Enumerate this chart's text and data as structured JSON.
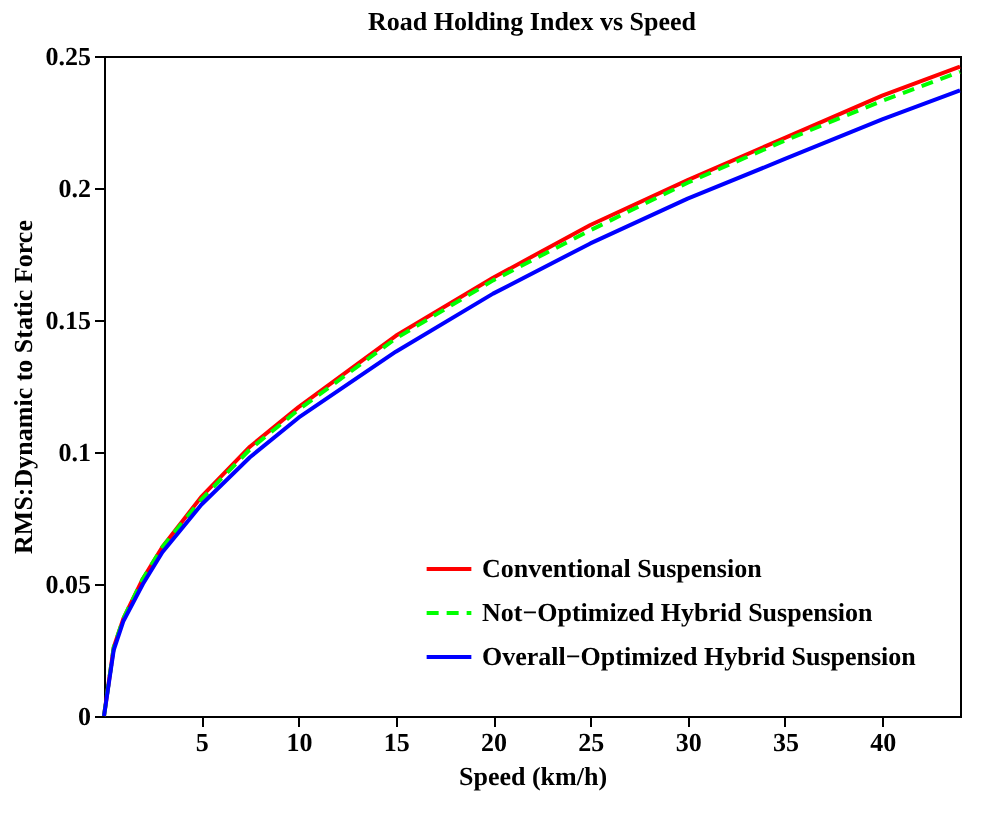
{
  "chart_data": {
    "type": "line",
    "title": "Road Holding Index  vs Speed",
    "xlabel": "Speed (km/h)",
    "ylabel": "RMS:Dynamic to Static Force",
    "x": [
      0,
      0.5,
      1,
      2,
      3,
      5,
      7.5,
      10,
      15,
      20,
      25,
      30,
      35,
      40,
      44
    ],
    "series": [
      {
        "name": "Conventional Suspension",
        "color": "#ff0000",
        "line_style": "solid",
        "values": [
          0,
          0.026,
          0.037,
          0.052,
          0.064,
          0.083,
          0.102,
          0.117,
          0.144,
          0.166,
          0.186,
          0.203,
          0.219,
          0.235,
          0.246
        ]
      },
      {
        "name": "Not−Optimized Hybrid Suspension",
        "color": "#00ff00",
        "line_style": "dashed",
        "values": [
          0,
          0.026,
          0.037,
          0.052,
          0.064,
          0.082,
          0.101,
          0.116,
          0.143,
          0.165,
          0.184,
          0.202,
          0.218,
          0.233,
          0.244
        ]
      },
      {
        "name": "Overall−Optimized Hybrid Suspension",
        "color": "#0000ff",
        "line_style": "solid",
        "values": [
          0,
          0.025,
          0.036,
          0.05,
          0.062,
          0.08,
          0.098,
          0.113,
          0.138,
          0.16,
          0.179,
          0.196,
          0.211,
          0.226,
          0.237
        ]
      }
    ],
    "xlim": [
      0,
      44
    ],
    "xticks": [
      5,
      10,
      15,
      20,
      25,
      30,
      35,
      40
    ],
    "ylim": [
      0,
      0.25
    ],
    "yticks": [
      0,
      0.05,
      0.1,
      0.15,
      0.2,
      0.25
    ],
    "grid": false,
    "legend": "bottom right",
    "marker": "none"
  }
}
